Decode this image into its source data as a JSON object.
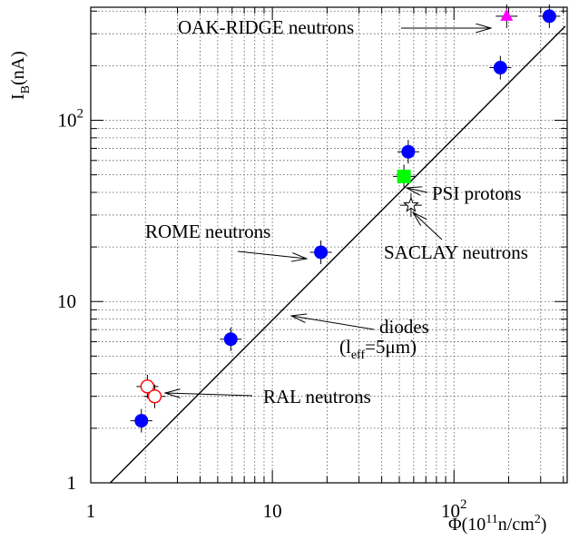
{
  "chart_data": {
    "type": "scatter",
    "xscale": "log",
    "yscale": "log",
    "xlim": [
      1,
      420
    ],
    "ylim": [
      1,
      420
    ],
    "grid": true,
    "xlabel": {
      "base": "Φ(10",
      "sup": "11",
      "mid": "n/cm",
      "sup2": "2",
      "end": ")"
    },
    "ylabel": {
      "base": "I",
      "sub": "B",
      "end": "(nA)"
    },
    "xticks": [
      {
        "value": 1,
        "label": "1"
      },
      {
        "value": 10,
        "label": "10"
      },
      {
        "value": 100,
        "label": "10",
        "exp": "2"
      }
    ],
    "yticks": [
      {
        "value": 1,
        "label": "1"
      },
      {
        "value": 10,
        "label": "10"
      },
      {
        "value": 100,
        "label": "10",
        "exp": "2"
      }
    ],
    "series": [
      {
        "name": "ROME neutrons",
        "marker": "filled-circle",
        "color": "#0000ff",
        "points": [
          {
            "x": 1.9,
            "y": 2.2
          },
          {
            "x": 5.9,
            "y": 6.2
          },
          {
            "x": 18.5,
            "y": 18.7
          },
          {
            "x": 56,
            "y": 67
          },
          {
            "x": 180,
            "y": 195
          },
          {
            "x": 335,
            "y": 375
          }
        ]
      },
      {
        "name": "RAL neutrons",
        "marker": "open-circle",
        "color": "#ff0000",
        "points": [
          {
            "x": 2.05,
            "y": 3.4
          },
          {
            "x": 2.25,
            "y": 3.0
          }
        ]
      },
      {
        "name": "PSI protons",
        "marker": "filled-square",
        "color": "#00ff00",
        "points": [
          {
            "x": 53,
            "y": 49
          }
        ]
      },
      {
        "name": "SACLAY neutrons",
        "marker": "open-star",
        "color": "#000000",
        "points": [
          {
            "x": 58,
            "y": 34
          }
        ]
      },
      {
        "name": "OAK-RIDGE neutrons",
        "marker": "filled-triangle",
        "color": "#ff00ff",
        "points": [
          {
            "x": 195,
            "y": 375
          }
        ]
      }
    ],
    "reference_line": {
      "name": "diodes",
      "points": [
        {
          "x": 1.28,
          "y": 1.0
        },
        {
          "x": 410,
          "y": 330
        }
      ]
    },
    "annotations": [
      {
        "id": "oak-ridge",
        "text": "OAK-RIDGE neutrons"
      },
      {
        "id": "psi",
        "text": "PSI protons"
      },
      {
        "id": "rome",
        "text": "ROME neutrons"
      },
      {
        "id": "saclay",
        "text": "SACLAY neutrons"
      },
      {
        "id": "diodes",
        "text": "diodes"
      },
      {
        "id": "diodes-sub",
        "open": "(l",
        "sub": "eff",
        "rest": "=5μm)"
      },
      {
        "id": "ral",
        "text": "RAL neutrons"
      }
    ]
  }
}
